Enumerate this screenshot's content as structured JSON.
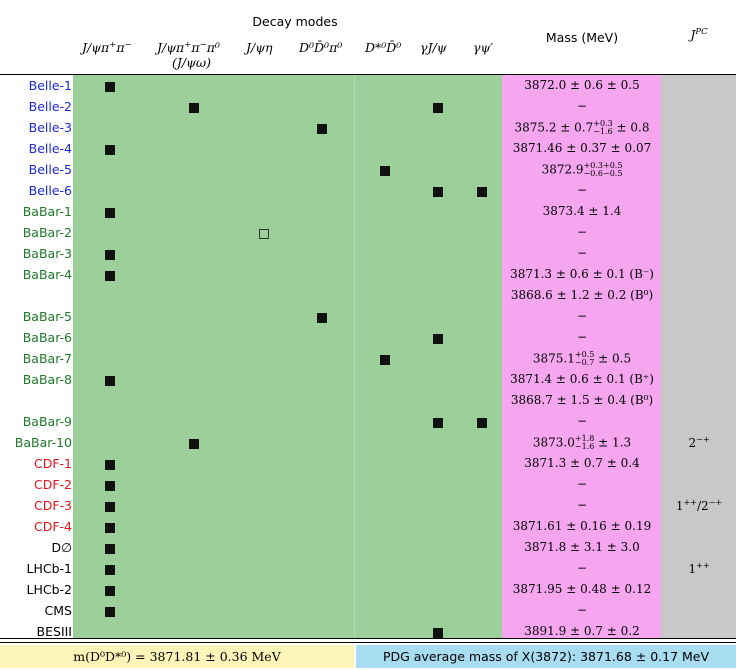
{
  "header": {
    "decay_modes_title": "Decay modes",
    "mass_title": "Mass (MeV)",
    "jpc_title": "J",
    "jpc_sup": "PC",
    "modes": [
      {
        "base": "J/ψπ",
        "sup1": "+",
        "mid": "π",
        "sup2": "−",
        "extra": ""
      },
      {
        "base": "J/ψπ",
        "sup1": "+",
        "mid": "π",
        "sup2": "−",
        "extra": "π⁰"
      },
      {
        "base": "J/ψη",
        "sup1": "",
        "mid": "",
        "sup2": "",
        "extra": ""
      },
      {
        "base": "D⁰D̄⁰π⁰",
        "sup1": "",
        "mid": "",
        "sup2": "",
        "extra": ""
      },
      {
        "base": "D*⁰D̄⁰",
        "sup1": "",
        "mid": "",
        "sup2": "",
        "extra": ""
      },
      {
        "base": "γJ/ψ",
        "sup1": "",
        "mid": "",
        "sup2": "",
        "extra": ""
      },
      {
        "base": "γψ′",
        "sup1": "",
        "mid": "",
        "sup2": "",
        "extra": ""
      }
    ],
    "mode2_sub": "(J/ψω)"
  },
  "colors": {
    "green": "#9dcf9a",
    "pink": "#f5a6ef",
    "gray": "#c8c8c8",
    "yellow": "#fdf4b8",
    "blue_box": "#a8dcf1",
    "belle": "#1c28d2",
    "babar": "#1f7a2b",
    "cdf": "#e8151b",
    "other": "#000000"
  },
  "rows": [
    {
      "label": "Belle-1",
      "group": "belle",
      "marks": [
        1,
        0,
        0,
        0,
        0,
        0,
        0
      ],
      "mass": "3872.0 ± 0.6 ± 0.5",
      "jpc": ""
    },
    {
      "label": "Belle-2",
      "group": "belle",
      "marks": [
        0,
        1,
        0,
        0,
        0,
        1,
        0
      ],
      "mass": "−",
      "jpc": ""
    },
    {
      "label": "Belle-3",
      "group": "belle",
      "marks": [
        0,
        0,
        0,
        1,
        0,
        0,
        0
      ],
      "mass": "3875.2 ± 0.7",
      "mass_sup": "+0.3",
      "mass_sub": "−1.6",
      "mass_tail": " ± 0.8",
      "jpc": ""
    },
    {
      "label": "Belle-4",
      "group": "belle",
      "marks": [
        1,
        0,
        0,
        0,
        0,
        0,
        0
      ],
      "mass": "3871.46 ± 0.37 ± 0.07",
      "jpc": ""
    },
    {
      "label": "Belle-5",
      "group": "belle",
      "marks": [
        0,
        0,
        0,
        0,
        1,
        0,
        0
      ],
      "mass": "3872.9",
      "mass_sup": "+0.3+0.5",
      "mass_sub": "−0.6−0.5",
      "mass_tail": "",
      "jpc": ""
    },
    {
      "label": "Belle-6",
      "group": "belle",
      "marks": [
        0,
        0,
        0,
        0,
        0,
        1,
        1
      ],
      "mass": "−",
      "jpc": ""
    },
    {
      "label": "BaBar-1",
      "group": "babar",
      "marks": [
        1,
        0,
        0,
        0,
        0,
        0,
        0
      ],
      "mass": "3873.4 ± 1.4",
      "jpc": ""
    },
    {
      "label": "BaBar-2",
      "group": "babar",
      "marks": [
        0,
        0,
        2,
        0,
        0,
        0,
        0
      ],
      "mass": "−",
      "jpc": ""
    },
    {
      "label": "BaBar-3",
      "group": "babar",
      "marks": [
        1,
        0,
        0,
        0,
        0,
        0,
        0
      ],
      "mass": "−",
      "jpc": ""
    },
    {
      "label": "BaBar-4",
      "group": "babar",
      "marks": [
        1,
        0,
        0,
        0,
        0,
        0,
        0
      ],
      "mass": "3871.3 ± 0.6 ± 0.1 (B⁻)",
      "jpc": ""
    },
    {
      "label": "",
      "group": "babar",
      "marks": [
        0,
        0,
        0,
        0,
        0,
        0,
        0
      ],
      "mass": "3868.6 ± 1.2 ± 0.2 (B⁰)",
      "jpc": ""
    },
    {
      "label": "BaBar-5",
      "group": "babar",
      "marks": [
        0,
        0,
        0,
        1,
        0,
        0,
        0
      ],
      "mass": "−",
      "jpc": ""
    },
    {
      "label": "BaBar-6",
      "group": "babar",
      "marks": [
        0,
        0,
        0,
        0,
        0,
        1,
        0
      ],
      "mass": "−",
      "jpc": ""
    },
    {
      "label": "BaBar-7",
      "group": "babar",
      "marks": [
        0,
        0,
        0,
        0,
        1,
        0,
        0
      ],
      "mass": "3875.1",
      "mass_sup": "+0.5",
      "mass_sub": "−0.7",
      "mass_tail": " ± 0.5",
      "jpc": ""
    },
    {
      "label": "BaBar-8",
      "group": "babar",
      "marks": [
        1,
        0,
        0,
        0,
        0,
        0,
        0
      ],
      "mass": "3871.4 ± 0.6 ± 0.1 (B⁺)",
      "jpc": ""
    },
    {
      "label": "",
      "group": "babar",
      "marks": [
        0,
        0,
        0,
        0,
        0,
        0,
        0
      ],
      "mass": "3868.7 ± 1.5 ± 0.4 (B⁰)",
      "jpc": ""
    },
    {
      "label": "BaBar-9",
      "group": "babar",
      "marks": [
        0,
        0,
        0,
        0,
        0,
        1,
        1
      ],
      "mass": "−",
      "jpc": ""
    },
    {
      "label": "BaBar-10",
      "group": "babar",
      "marks": [
        0,
        1,
        0,
        0,
        0,
        0,
        0
      ],
      "mass": "3873.0",
      "mass_sup": "+1.8",
      "mass_sub": "−1.6",
      "mass_tail": " ± 1.3",
      "jpc": "2",
      "jpc_sup": "−+"
    },
    {
      "label": "CDF-1",
      "group": "cdf",
      "marks": [
        1,
        0,
        0,
        0,
        0,
        0,
        0
      ],
      "mass": "3871.3 ± 0.7 ± 0.4",
      "jpc": ""
    },
    {
      "label": "CDF-2",
      "group": "cdf",
      "marks": [
        1,
        0,
        0,
        0,
        0,
        0,
        0
      ],
      "mass": "−",
      "jpc": ""
    },
    {
      "label": "CDF-3",
      "group": "cdf",
      "marks": [
        1,
        0,
        0,
        0,
        0,
        0,
        0
      ],
      "mass": "−",
      "jpc": "1",
      "jpc_sup": "++",
      "jpc_mid": "/2",
      "jpc_sup2": "−+"
    },
    {
      "label": "CDF-4",
      "group": "cdf",
      "marks": [
        1,
        0,
        0,
        0,
        0,
        0,
        0
      ],
      "mass": "3871.61 ± 0.16 ± 0.19",
      "jpc": ""
    },
    {
      "label": "D∅",
      "group": "other",
      "marks": [
        1,
        0,
        0,
        0,
        0,
        0,
        0
      ],
      "mass": "3871.8 ± 3.1 ± 3.0",
      "jpc": ""
    },
    {
      "label": "LHCb-1",
      "group": "other",
      "marks": [
        1,
        0,
        0,
        0,
        0,
        0,
        0
      ],
      "mass": "−",
      "jpc": "1",
      "jpc_sup": "++"
    },
    {
      "label": "LHCb-2",
      "group": "other",
      "marks": [
        1,
        0,
        0,
        0,
        0,
        0,
        0
      ],
      "mass": "3871.95 ± 0.48 ± 0.12",
      "jpc": ""
    },
    {
      "label": "CMS",
      "group": "other",
      "marks": [
        1,
        0,
        0,
        0,
        0,
        0,
        0
      ],
      "mass": "−",
      "jpc": ""
    },
    {
      "label": "BESIII",
      "group": "other",
      "marks": [
        0,
        0,
        0,
        0,
        0,
        1,
        0
      ],
      "mass": "3891.9 ± 0.7 ± 0.2",
      "jpc": ""
    }
  ],
  "footer": {
    "left": "m(D⁰D*⁰) = 3871.81 ± 0.36 MeV",
    "right": "PDG average mass of X(3872): 3871.68 ± 0.17 MeV"
  }
}
